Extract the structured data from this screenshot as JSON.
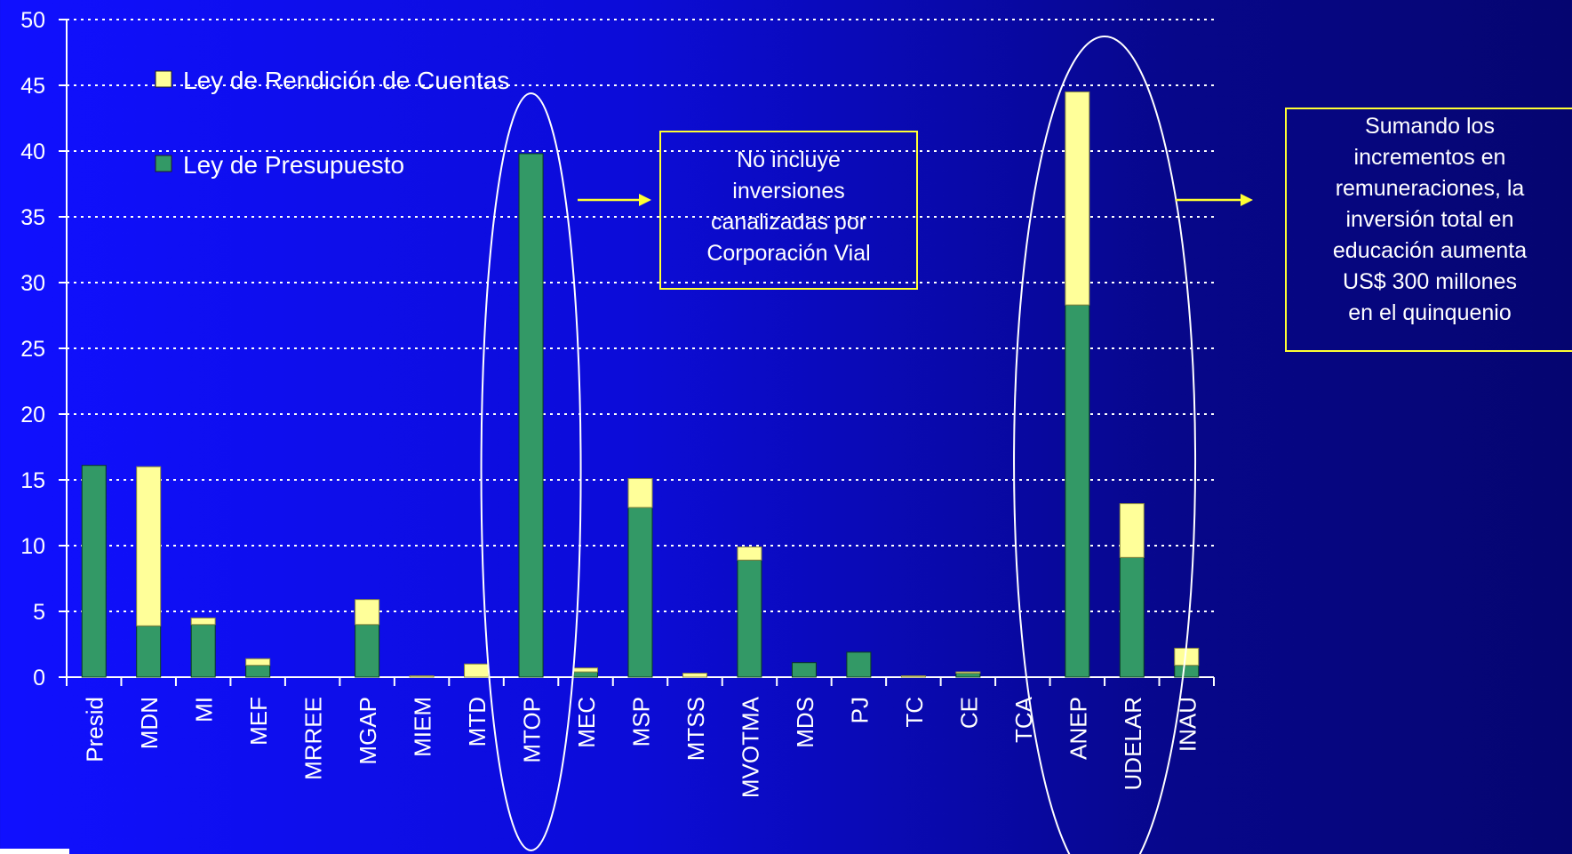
{
  "chart_data": {
    "type": "bar",
    "stacked": true,
    "title": "",
    "xlabel": "",
    "ylabel": "",
    "ylim": [
      0,
      50
    ],
    "yticks": [
      0,
      5,
      10,
      15,
      20,
      25,
      30,
      35,
      40,
      45,
      50
    ],
    "grid": true,
    "legend_position": "top-left",
    "categories": [
      "Presid",
      "MDN",
      "MI",
      "MEF",
      "MRREE",
      "MGAP",
      "MIEM",
      "MTD",
      "MTOP",
      "MEC",
      "MSP",
      "MTSS",
      "MVOTMA",
      "MDS",
      "PJ",
      "TC",
      "CE",
      "TCA",
      "ANEP",
      "UDELAR",
      "INAU"
    ],
    "series": [
      {
        "name": "Ley de Presupuesto",
        "color": "#339966",
        "values": [
          16.1,
          3.9,
          4.0,
          0.9,
          0,
          4.0,
          0,
          0,
          39.8,
          0.4,
          12.9,
          0,
          8.9,
          1.1,
          1.9,
          0,
          0.3,
          0,
          28.3,
          9.1,
          0.9
        ]
      },
      {
        "name": "Ley de Rendición de Cuentas",
        "color": "#ffff99",
        "values": [
          0,
          12.1,
          0.5,
          0.5,
          0,
          1.9,
          0.1,
          1.0,
          0,
          0.3,
          2.2,
          0.3,
          1.0,
          0,
          0,
          0.1,
          0.1,
          0,
          16.2,
          4.1,
          1.3
        ]
      }
    ],
    "legend": [
      "Ley de Rendición de Cuentas",
      "Ley de Presupuesto"
    ],
    "annotations": [
      "No incluye inversiones canalizadas por Corporación Vial",
      "Sumando los incrementos en remuneraciones, la inversión total en educación aumenta US$ 300 millones en el quinquenio"
    ],
    "highlighted_categories": [
      "MTOP",
      "ANEP",
      "UDELAR"
    ]
  },
  "notes": {
    "mtop": "No incluye\ninversiones\ncanalizadas por\nCorporación Vial",
    "educacion": "Sumando los\nincrementos en\nremuneraciones, la\ninversión total en\neducación aumenta\nUS$ 300 millones\nen el quinquenio"
  },
  "colors": {
    "grid": "#ffffff",
    "axis": "#ffffff",
    "text": "#ffffff",
    "note_border": "#ffff33",
    "arrow": "#ffff33",
    "ellipse": "#ffffff"
  }
}
